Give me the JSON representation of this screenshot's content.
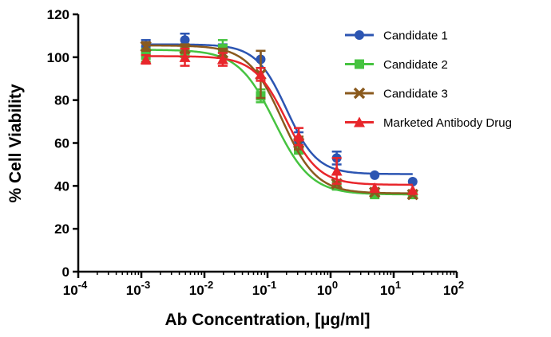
{
  "chart_data": {
    "type": "scatter",
    "xlabel": "Ab Concentration, [µg/ml]",
    "ylabel": "% Cell Viability",
    "xscale": "log",
    "xlim": [
      0.0001,
      100
    ],
    "ylim": [
      0,
      120
    ],
    "x_ticks": [
      {
        "value": 0.0001,
        "base": "10",
        "exp": "-4"
      },
      {
        "value": 0.001,
        "base": "10",
        "exp": "-3"
      },
      {
        "value": 0.01,
        "base": "10",
        "exp": "-2"
      },
      {
        "value": 0.1,
        "base": "10",
        "exp": "-1"
      },
      {
        "value": 1,
        "base": "10",
        "exp": "0"
      },
      {
        "value": 10,
        "base": "10",
        "exp": "1"
      },
      {
        "value": 100,
        "base": "10",
        "exp": "2"
      }
    ],
    "y_ticks": [
      "0",
      "20",
      "40",
      "60",
      "80",
      "100",
      "120"
    ],
    "grid": false,
    "legend_position": "top-right",
    "series": [
      {
        "name": "Candidate 1",
        "color": "#2c55b2",
        "marker": "circle",
        "x": [
          0.00118,
          0.0049,
          0.0195,
          0.078,
          0.3125,
          1.25,
          5,
          20
        ],
        "y": [
          105,
          108,
          104,
          99,
          61,
          53,
          45,
          42
        ],
        "err": [
          3,
          3,
          2,
          4,
          4,
          3,
          0,
          0
        ],
        "fit": {
          "top": 106,
          "bottom": 45.5,
          "ec50": 0.2,
          "hill": 1.8
        }
      },
      {
        "name": "Candidate 2",
        "color": "#46c340",
        "marker": "square",
        "x": [
          0.00118,
          0.0049,
          0.0195,
          0.078,
          0.3125,
          1.25,
          5,
          20
        ],
        "y": [
          101,
          103,
          104,
          82,
          57,
          40,
          36,
          36
        ],
        "err": [
          3,
          3,
          4,
          3,
          2,
          0,
          0,
          0
        ],
        "fit": {
          "top": 103.5,
          "bottom": 36,
          "ec50": 0.13,
          "hill": 1.5
        }
      },
      {
        "name": "Candidate 3",
        "color": "#8a5a1e",
        "marker": "x",
        "x": [
          0.00118,
          0.0049,
          0.0195,
          0.078,
          0.3125,
          1.25,
          5,
          20
        ],
        "y": [
          105,
          104,
          102,
          92,
          60,
          41,
          37,
          36
        ],
        "err": [
          2,
          2,
          2,
          11,
          3,
          0,
          0,
          0
        ],
        "fit": {
          "top": 105.5,
          "bottom": 36.5,
          "ec50": 0.17,
          "hill": 1.6
        }
      },
      {
        "name": "Marketed Antibody Drug",
        "color": "#e8262b",
        "marker": "triangle",
        "x": [
          0.00118,
          0.0049,
          0.0195,
          0.078,
          0.3125,
          1.25,
          5,
          20
        ],
        "y": [
          99,
          100,
          99,
          92,
          63,
          47,
          39,
          38
        ],
        "err": [
          2,
          4,
          3,
          3,
          4,
          6,
          0,
          0
        ],
        "fit": {
          "top": 100.5,
          "bottom": 40.5,
          "ec50": 0.2,
          "hill": 1.7
        }
      }
    ]
  }
}
